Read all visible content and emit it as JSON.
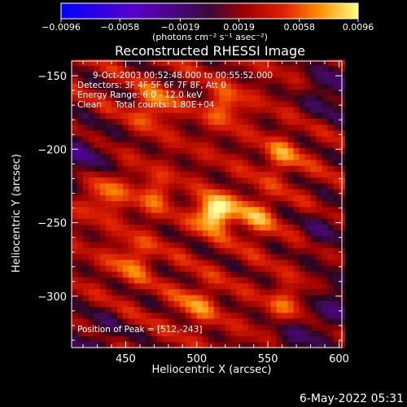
{
  "chart_data": {
    "type": "heatmap",
    "title": "Reconstructed RHESSI Image",
    "xlabel": "Heliocentric X (arcsec)",
    "ylabel": "Heliocentric Y (arcsec)",
    "xlim": [
      412,
      602
    ],
    "ylim": [
      -335,
      -140
    ],
    "x_ticks": [
      450,
      500,
      550,
      600
    ],
    "y_ticks": [
      -150,
      -200,
      -250,
      -300
    ],
    "colorbar": {
      "range": [
        -0.0096,
        0.0096
      ],
      "tick_values": [
        -0.0096,
        -0.0058,
        -0.0019,
        0.0019,
        0.0058,
        0.0096
      ],
      "tick_labels": [
        "-0.0096",
        "-0.0058",
        "-0.0019",
        "0.0019",
        "0.0058",
        "0.0096"
      ],
      "label": "(photons cm⁻² s⁻¹ asec⁻²)"
    },
    "annotations": [
      "9-Oct-2003 00:52:48.000 to 00:55:52.000",
      "Detectors: 3F 4F 5F 6F 7F 8F, Att 0",
      "Energy Range: 6.0 - 12.0 keV",
      "Clean     Total counts: 1.80E+04"
    ],
    "peak": {
      "label": "Position of Peak = [512,-243]",
      "x": 512,
      "y": -243
    },
    "pixel_size_arcsec": 4,
    "sources": [
      {
        "x": 512,
        "y": -243,
        "amp": 0.0096,
        "sigma": 8
      },
      {
        "x": 540,
        "y": -245,
        "amp": 0.0042,
        "sigma": 10
      },
      {
        "x": 470,
        "y": -170,
        "amp": 0.0045,
        "sigma": 9
      },
      {
        "x": 520,
        "y": -170,
        "amp": 0.004,
        "sigma": 9
      },
      {
        "x": 435,
        "y": -230,
        "amp": 0.004,
        "sigma": 10
      },
      {
        "x": 455,
        "y": -275,
        "amp": 0.0036,
        "sigma": 10
      },
      {
        "x": 560,
        "y": -205,
        "amp": 0.0038,
        "sigma": 9
      },
      {
        "x": 565,
        "y": -305,
        "amp": 0.0036,
        "sigma": 9
      },
      {
        "x": 500,
        "y": -305,
        "amp": 0.0034,
        "sigma": 10
      },
      {
        "x": 470,
        "y": -230,
        "amp": 0.0033,
        "sigma": 9
      }
    ],
    "negative_regions": [
      {
        "x": 420,
        "y": -205,
        "amp": -0.0035,
        "sigma": 14
      },
      {
        "x": 595,
        "y": -160,
        "amp": -0.0035,
        "sigma": 14
      },
      {
        "x": 595,
        "y": -305,
        "amp": -0.003,
        "sigma": 14
      },
      {
        "x": 430,
        "y": -330,
        "amp": -0.0028,
        "sigma": 14
      },
      {
        "x": 570,
        "y": -330,
        "amp": -0.003,
        "sigma": 12
      },
      {
        "x": 590,
        "y": -255,
        "amp": -0.0025,
        "sigma": 12
      }
    ],
    "background": 0.0022,
    "stripe": {
      "amp": 0.0018,
      "period_arcsec": 24,
      "angle_deg": 65
    }
  },
  "footer": {
    "date": "6-May-2022 05:31"
  },
  "colors": {
    "axes": "#ffffff",
    "background": "#000000"
  }
}
